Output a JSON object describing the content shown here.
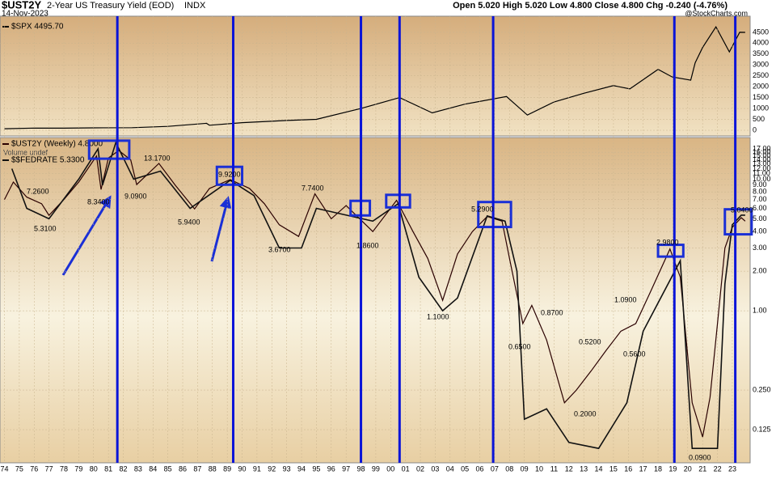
{
  "header": {
    "symbol": "$UST2Y",
    "name": "2-Year US Treasury Yield (EOD)",
    "exchange": "INDX",
    "date": "14-Nov-2023",
    "quote": "Open 5.020  High 5.020  Low 4.800  Close 4.800  Chg -0.240 (-4.76%)",
    "source": "@StockCharts.com"
  },
  "chart_data": [
    {
      "type": "line",
      "xlim": [
        1973.7,
        2024.2
      ],
      "ylim": [
        -260,
        5240
      ],
      "yticks": [
        0,
        500,
        1000,
        1500,
        2000,
        2500,
        3000,
        3500,
        4000,
        4500
      ],
      "series": [
        {
          "name": "$SPX 4495.70",
          "color": "#000000",
          "x": [
            1974,
            1976,
            1978,
            1980,
            1982.6,
            1985,
            1987.6,
            1987.8,
            1990,
            1993,
            1995,
            1998,
            2000.6,
            2002.8,
            2005,
            2007.8,
            2009.2,
            2011,
            2013,
            2015,
            2016.1,
            2018,
            2018.95,
            2020.2,
            2020.5,
            2021,
            2021.9,
            2022.8,
            2023.5,
            2023.87
          ],
          "values": [
            70,
            100,
            95,
            110,
            120,
            180,
            320,
            230,
            350,
            450,
            500,
            1000,
            1500,
            800,
            1200,
            1550,
            700,
            1300,
            1700,
            2050,
            1900,
            2800,
            2450,
            2300,
            3100,
            3800,
            4750,
            3600,
            4500,
            4495.7
          ]
        }
      ]
    },
    {
      "type": "line",
      "log": true,
      "xlim": [
        1973.7,
        2024.2
      ],
      "ylim": [
        0.07,
        20.7
      ],
      "yticks": [
        {
          "value": 0.125,
          "label": "0.125"
        },
        {
          "value": 0.25,
          "label": "0.250"
        },
        {
          "value": 1,
          "label": "1.00"
        },
        {
          "value": 2,
          "label": "2.00"
        },
        {
          "value": 3,
          "label": "3.00"
        },
        {
          "value": 4,
          "label": "4.00"
        },
        {
          "value": 5,
          "label": "5.00"
        },
        {
          "value": 6,
          "label": "6.00"
        },
        {
          "value": 7,
          "label": "7.00"
        },
        {
          "value": 8,
          "label": "8.00"
        },
        {
          "value": 9,
          "label": "9.00"
        },
        {
          "value": 10,
          "label": "10.00"
        },
        {
          "value": 11,
          "label": "11.00"
        },
        {
          "value": 12,
          "label": "12.00"
        },
        {
          "value": 13,
          "label": "13.00"
        },
        {
          "value": 14,
          "label": "14.00"
        },
        {
          "value": 15,
          "label": "15.00"
        },
        {
          "value": 16,
          "label": "16.00"
        },
        {
          "value": 17,
          "label": "17.00"
        }
      ],
      "xticks": [
        {
          "value": 1974,
          "label": "74"
        },
        {
          "value": 1975,
          "label": "75"
        },
        {
          "value": 1976,
          "label": "76"
        },
        {
          "value": 1977,
          "label": "77"
        },
        {
          "value": 1978,
          "label": "78"
        },
        {
          "value": 1979,
          "label": "79"
        },
        {
          "value": 1980,
          "label": "80"
        },
        {
          "value": 1981,
          "label": "81"
        },
        {
          "value": 1982,
          "label": "82"
        },
        {
          "value": 1983,
          "label": "83"
        },
        {
          "value": 1984,
          "label": "84"
        },
        {
          "value": 1985,
          "label": "85"
        },
        {
          "value": 1986,
          "label": "86"
        },
        {
          "value": 1987,
          "label": "87"
        },
        {
          "value": 1988,
          "label": "88"
        },
        {
          "value": 1989,
          "label": "89"
        },
        {
          "value": 1990,
          "label": "90"
        },
        {
          "value": 1991,
          "label": "91"
        },
        {
          "value": 1992,
          "label": "92"
        },
        {
          "value": 1993,
          "label": "93"
        },
        {
          "value": 1994,
          "label": "94"
        },
        {
          "value": 1995,
          "label": "95"
        },
        {
          "value": 1996,
          "label": "96"
        },
        {
          "value": 1997,
          "label": "97"
        },
        {
          "value": 1998,
          "label": "98"
        },
        {
          "value": 1999,
          "label": "99"
        },
        {
          "value": 2000,
          "label": "00"
        },
        {
          "value": 2001,
          "label": "01"
        },
        {
          "value": 2002,
          "label": "02"
        },
        {
          "value": 2003,
          "label": "03"
        },
        {
          "value": 2004,
          "label": "04"
        },
        {
          "value": 2005,
          "label": "05"
        },
        {
          "value": 2006,
          "label": "06"
        },
        {
          "value": 2007,
          "label": "07"
        },
        {
          "value": 2008,
          "label": "08"
        },
        {
          "value": 2009,
          "label": "09"
        },
        {
          "value": 2010,
          "label": "10"
        },
        {
          "value": 2011,
          "label": "11"
        },
        {
          "value": 2012,
          "label": "12"
        },
        {
          "value": 2013,
          "label": "13"
        },
        {
          "value": 2014,
          "label": "14"
        },
        {
          "value": 2015,
          "label": "15"
        },
        {
          "value": 2016,
          "label": "16"
        },
        {
          "value": 2017,
          "label": "17"
        },
        {
          "value": 2018,
          "label": "18"
        },
        {
          "value": 2019,
          "label": "19"
        },
        {
          "value": 2020,
          "label": "20"
        },
        {
          "value": 2021,
          "label": "21"
        },
        {
          "value": 2022,
          "label": "22"
        },
        {
          "value": 2023,
          "label": "23"
        }
      ],
      "volume_label": "Volume undef",
      "series": [
        {
          "name": "$UST2Y (Weekly) 4.8000",
          "color": "#2a0000",
          "x": [
            1974.0,
            1974.6,
            1975.5,
            1976.5,
            1977.0,
            1978.0,
            1979.0,
            1980.2,
            1980.5,
            1981.0,
            1981.7,
            1982.5,
            1982.9,
            1984.4,
            1985.5,
            1986.8,
            1987.8,
            1989.2,
            1990.5,
            1991.5,
            1992.5,
            1993.8,
            1994.9,
            1996.0,
            1997.0,
            1998.8,
            2000.4,
            2001.5,
            2002.5,
            2003.5,
            2004.5,
            2005.5,
            2006.5,
            2007.5,
            2008.0,
            2008.9,
            2009.5,
            2010.5,
            2011.7,
            2012.5,
            2013.5,
            2014.5,
            2015.5,
            2016.5,
            2017.5,
            2018.8,
            2019.5,
            2020.3,
            2021.0,
            2021.5,
            2022.0,
            2022.5,
            2023.0,
            2023.6,
            2023.87
          ],
          "values": [
            7.0,
            9.5,
            7.3,
            6.5,
            5.31,
            7.0,
            9.5,
            15.0,
            8.34,
            14.5,
            16.5,
            14.0,
            9.09,
            13.17,
            9.0,
            5.94,
            8.5,
            9.92,
            8.5,
            6.5,
            4.5,
            3.67,
            7.74,
            5.0,
            6.3,
            4.0,
            6.9,
            4.0,
            2.5,
            1.2,
            2.7,
            4.0,
            5.2,
            4.8,
            2.5,
            0.8,
            1.1,
            0.6,
            0.2,
            0.25,
            0.35,
            0.5,
            0.7,
            0.8,
            1.4,
            2.95,
            1.8,
            0.2,
            0.11,
            0.22,
            0.8,
            3.0,
            4.3,
            5.1,
            4.8
          ]
        },
        {
          "name": "$$FEDRATE 5.3300",
          "color": "#111111",
          "x": [
            1974.5,
            1975.5,
            1977,
            1979,
            1980.3,
            1980.6,
            1981.5,
            1982.7,
            1984.5,
            1986.5,
            1989.2,
            1990.8,
            1992.5,
            1994,
            1995,
            1998.8,
            2000.5,
            2001.9,
            2003.5,
            2004.5,
            2006.5,
            2007.7,
            2008.5,
            2009,
            2010.5,
            2012,
            2014,
            2015.9,
            2017,
            2019.5,
            2020.3,
            2022,
            2022.5,
            2023.0,
            2023.6,
            2023.87
          ],
          "values": [
            12,
            6,
            5,
            10,
            17,
            9,
            19,
            10,
            11.5,
            6,
            9.8,
            7.5,
            3,
            3,
            6,
            4.8,
            6.5,
            1.8,
            1,
            1.25,
            5.25,
            4.8,
            2,
            0.15,
            0.18,
            0.1,
            0.09,
            0.2,
            0.7,
            2.4,
            0.09,
            0.09,
            1.6,
            4.5,
            5.33,
            5.33
          ]
        }
      ],
      "vlines": [
        1981.6,
        1989.4,
        1998.0,
        2000.6,
        2006.9,
        2019.1,
        2023.2
      ],
      "boxes": [
        {
          "x": [
            1979.7,
            1982.4
          ],
          "y": [
            14.3,
            19.6
          ]
        },
        {
          "x": [
            1988.3,
            1990.0
          ],
          "y": [
            9.07,
            12.4
          ]
        },
        {
          "x": [
            1997.3,
            1998.6
          ],
          "y": [
            5.3,
            6.84
          ]
        },
        {
          "x": [
            1999.7,
            2001.3
          ],
          "y": [
            6.1,
            7.6
          ]
        },
        {
          "x": [
            2005.9,
            2008.1
          ],
          "y": [
            4.33,
            6.7
          ]
        },
        {
          "x": [
            2018.0,
            2019.7
          ],
          "y": [
            2.58,
            3.17
          ]
        },
        {
          "x": [
            2022.5,
            2024.3
          ],
          "y": [
            3.81,
            5.9
          ]
        }
      ],
      "annotations": [
        "7.2600",
        "5.3100",
        "8.3400",
        "9.0900",
        "13.1700",
        "5.9400",
        "9.9200",
        "3.6700",
        "7.7400",
        "1.8600",
        "5.2900",
        "1.1000",
        "0.6500",
        "0.8700",
        "0.5200",
        "0.2000",
        "1.0900",
        "0.5600",
        "2.9800",
        "0.0900",
        "5.0400"
      ]
    }
  ]
}
